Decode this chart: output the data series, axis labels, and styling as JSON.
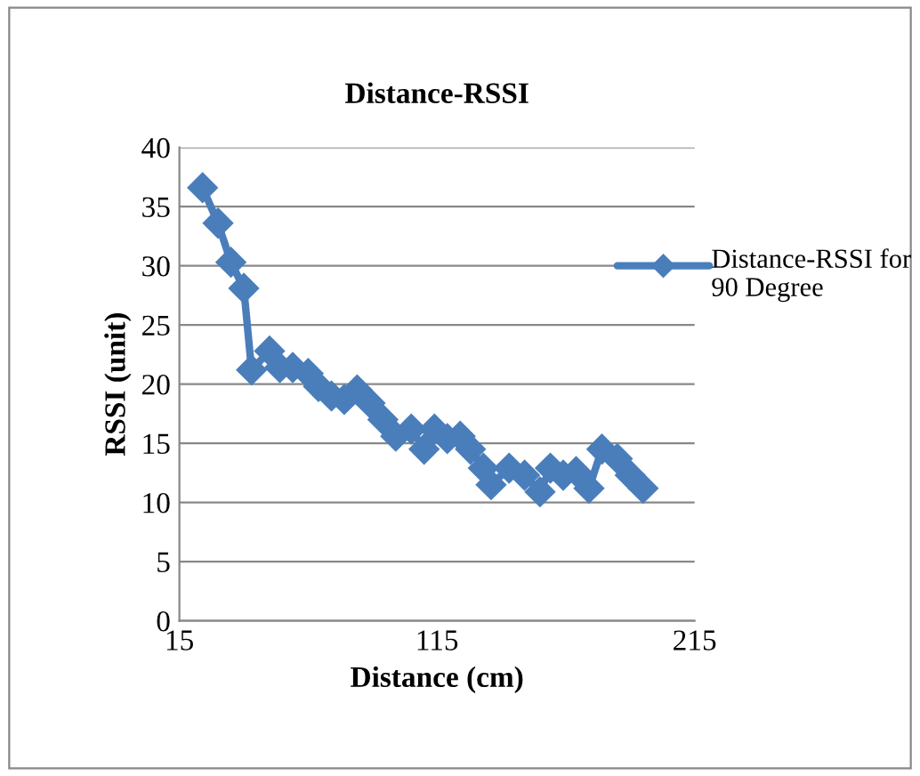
{
  "chart_data": {
    "type": "line",
    "title": "Distance-RSSI",
    "xlabel": "Distance (cm)",
    "ylabel": "RSSI (unit)",
    "series": [
      {
        "name": "Distance-RSSI for 90 Degree",
        "color": "#4a7ebb",
        "x": [
          24,
          30,
          35,
          40,
          43,
          50,
          54,
          59,
          65,
          69,
          74,
          79,
          84,
          89,
          94,
          99,
          105,
          110,
          114,
          119,
          124,
          128,
          133,
          136,
          143,
          149,
          155,
          159,
          164,
          169,
          174,
          179,
          185,
          190,
          195
        ],
        "values": [
          36.6,
          33.6,
          30.3,
          28.1,
          21.2,
          22.8,
          21.4,
          21.4,
          20.9,
          19.8,
          19,
          18.7,
          19.5,
          18.4,
          17,
          15.6,
          16.2,
          14.5,
          16.2,
          15.4,
          15.6,
          14.5,
          12.9,
          11.5,
          12.9,
          12.3,
          10.9,
          12.9,
          12.3,
          12.6,
          11.2,
          14.5,
          13.7,
          12.3,
          11.2
        ]
      }
    ],
    "xlim": [
      15,
      215
    ],
    "xticks": [
      15,
      115,
      215
    ],
    "ylim": [
      0,
      40
    ],
    "yticks": [
      0,
      5,
      10,
      15,
      20,
      25,
      30,
      35,
      40
    ],
    "grid": "y",
    "legend": "right",
    "marker": "diamond",
    "line_style": "solid"
  }
}
